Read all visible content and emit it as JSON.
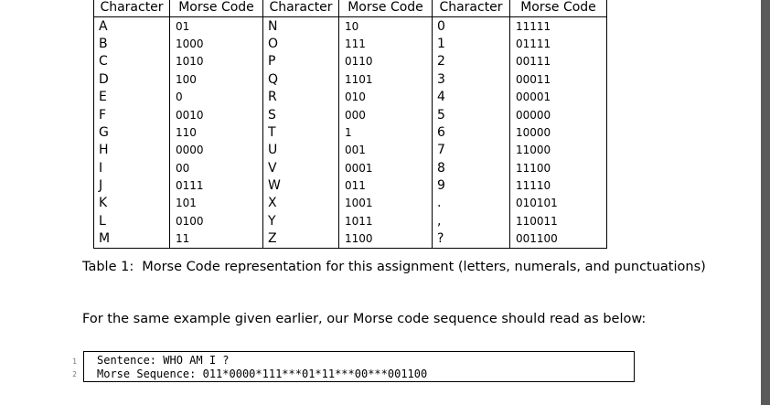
{
  "table": {
    "headers": [
      "Character",
      "Morse Code",
      "Character",
      "Morse Code",
      "Character",
      "Morse Code"
    ],
    "rows": [
      [
        "A",
        "01",
        "N",
        "10",
        "0",
        "11111"
      ],
      [
        "B",
        "1000",
        "O",
        "111",
        "1",
        "01111"
      ],
      [
        "C",
        "1010",
        "P",
        "0110",
        "2",
        "00111"
      ],
      [
        "D",
        "100",
        "Q",
        "1101",
        "3",
        "00011"
      ],
      [
        "E",
        "0",
        "R",
        "010",
        "4",
        "00001"
      ],
      [
        "F",
        "0010",
        "S",
        "000",
        "5",
        "00000"
      ],
      [
        "G",
        "110",
        "T",
        "1",
        "6",
        "10000"
      ],
      [
        "H",
        "0000",
        "U",
        "001",
        "7",
        "11000"
      ],
      [
        "I",
        "00",
        "V",
        "0001",
        "8",
        "11100"
      ],
      [
        "J",
        "0111",
        "W",
        "011",
        "9",
        "11110"
      ],
      [
        "K",
        "101",
        "X",
        "1001",
        ".",
        "010101"
      ],
      [
        "L",
        "0100",
        "Y",
        "1011",
        ",",
        "110011"
      ],
      [
        "M",
        "11",
        "Z",
        "1100",
        "?",
        "001100"
      ]
    ]
  },
  "caption": {
    "number": "Table 1:",
    "text": "Morse Code representation for this assignment (letters, numerals, and punctuations)"
  },
  "paragraph": "For the same example given earlier, our Morse code sequence should read as below:",
  "code": {
    "lines": [
      {
        "number": "1",
        "text": "Sentence: WHO AM I ?"
      },
      {
        "number": "2",
        "text": "Morse Sequence: 011*0000*111***01*11***00***001100"
      }
    ]
  }
}
